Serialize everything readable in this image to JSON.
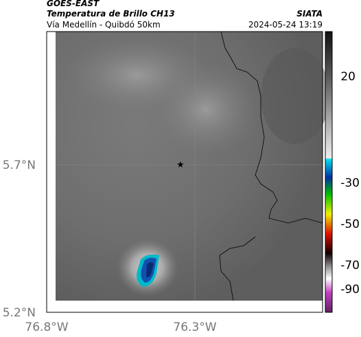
{
  "header": {
    "title": "GOES-EAST",
    "subtitle": "Temperatura de Brillo CH13",
    "region": "Vía Medellín - Quibdó 50km",
    "source": "SIATA",
    "datetime": "2024-05-24 13:19"
  },
  "axes": {
    "yticks": [
      "5.7°N",
      "5.2°N"
    ],
    "xticks": [
      "76.8°W",
      "76.3°W"
    ]
  },
  "colorbar": {
    "ticks": [
      20,
      -30,
      -50,
      -70,
      -90
    ]
  }
}
